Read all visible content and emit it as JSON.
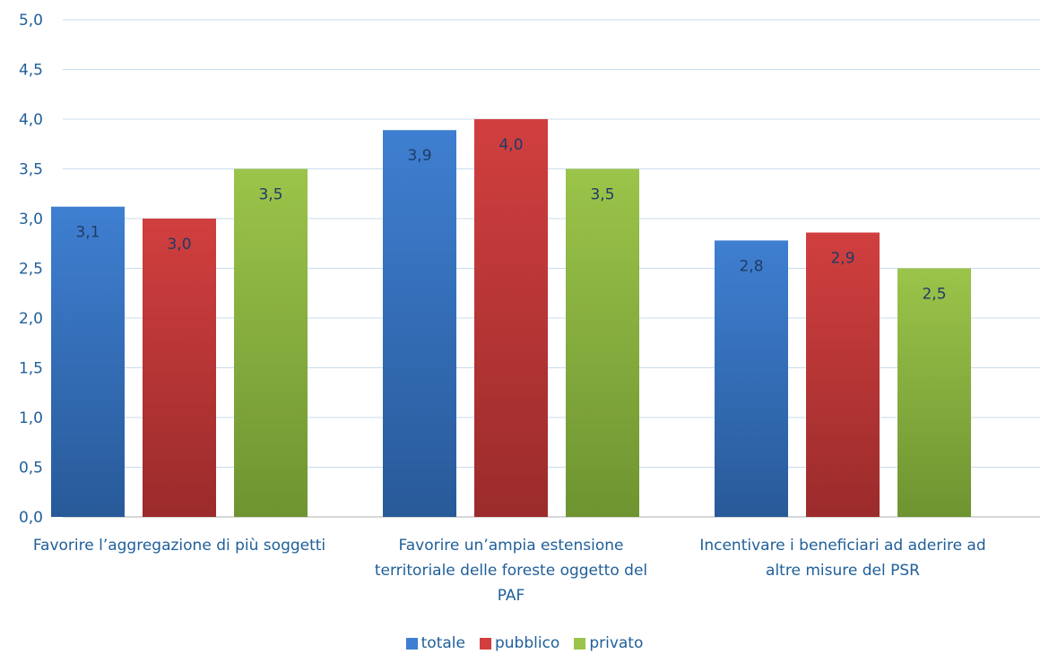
{
  "chart_data": {
    "type": "bar",
    "categories": [
      [
        "Favorire l’aggregazione di più soggetti"
      ],
      [
        "Favorire un’ampia estensione",
        "territoriale delle foreste oggetto del",
        "PAF"
      ],
      [
        "Incentivare i beneficiari ad aderire ad",
        "altre misure del PSR"
      ]
    ],
    "series": [
      {
        "name": "totale",
        "values": [
          3.12,
          3.89,
          2.78
        ],
        "labels": [
          "3,1",
          "3,9",
          "2,8"
        ],
        "color": "#3f7fd1",
        "color_dark": "#285a99"
      },
      {
        "name": "pubblico",
        "values": [
          3.0,
          4.0,
          2.86
        ],
        "labels": [
          "3,0",
          "4,0",
          "2,9"
        ],
        "color": "#d13f3f",
        "color_dark": "#9b2b2b"
      },
      {
        "name": "privato",
        "values": [
          3.5,
          3.5,
          2.5
        ],
        "labels": [
          "3,5",
          "3,5",
          "2,5"
        ],
        "color": "#9bc44a",
        "color_dark": "#6e9431"
      }
    ],
    "ylim": [
      0,
      5
    ],
    "y_ticks": [
      "0,0",
      "0,5",
      "1,0",
      "1,5",
      "2,0",
      "2,5",
      "3,0",
      "3,5",
      "4,0",
      "4,5",
      "5,0"
    ],
    "grid": true,
    "legend_position": "bottom",
    "title": "",
    "xlabel": "",
    "ylabel": ""
  }
}
